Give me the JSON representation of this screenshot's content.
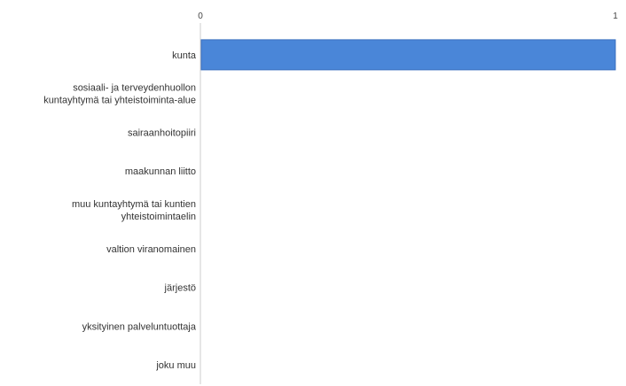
{
  "chart_data": {
    "type": "bar",
    "orientation": "horizontal",
    "categories": [
      [
        "kunta"
      ],
      [
        "sosiaali- ja terveydenhuollon",
        "kuntayhtymä tai yhteistoiminta-alue"
      ],
      [
        "sairaanhoitopiiri"
      ],
      [
        "maakunnan liitto"
      ],
      [
        "muu kuntayhtymä tai kuntien",
        "yhteistoimintaelin"
      ],
      [
        "valtion viranomainen"
      ],
      [
        "järjestö"
      ],
      [
        "yksityinen palveluntuottaja"
      ],
      [
        "joku muu"
      ]
    ],
    "values": [
      1,
      0,
      0,
      0,
      0,
      0,
      0,
      0,
      0
    ],
    "xlim": [
      0,
      1
    ],
    "xticks": [
      "0",
      "1"
    ],
    "title": "",
    "xlabel": "",
    "ylabel": "",
    "grid": false,
    "legend": "none",
    "bar_color": "#4a86d8",
    "bar_edge_color": "#3a6fbf"
  }
}
